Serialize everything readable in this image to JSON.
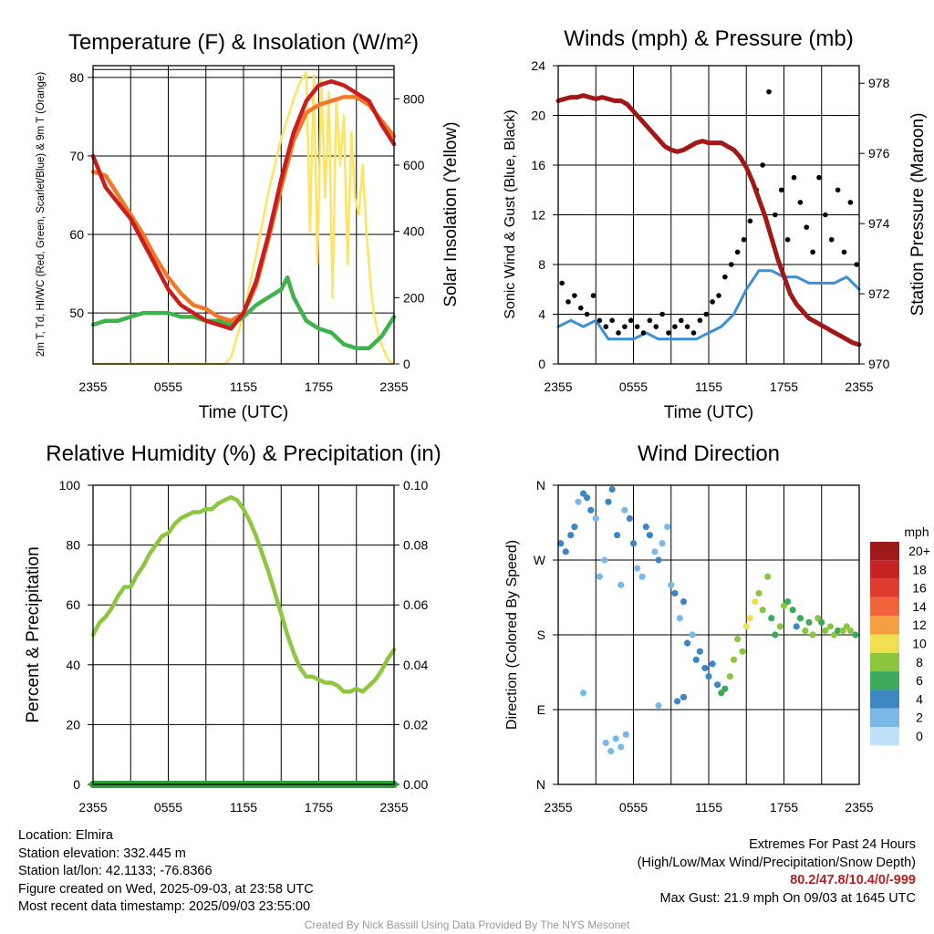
{
  "chart_data": [
    {
      "type": "line",
      "title": "Temperature (F) & Insolation (W/m²)",
      "xlabel": "Time (UTC)",
      "ylabel": "2m T, Td, HI/WC (Red, Green, Scarlet/Blue) & 9m T (Orange)",
      "y2label": "Solar Insolation (Yellow)",
      "x_ticks": [
        "2355",
        "0555",
        "1155",
        "1755",
        "2355"
      ],
      "y_ticks": [
        "50",
        "60",
        "70",
        "80"
      ],
      "y2_ticks": [
        "0",
        "200",
        "400",
        "600",
        "800"
      ],
      "ylim": [
        43.5,
        81.5
      ],
      "y2lim": [
        0,
        900
      ],
      "grid": true,
      "series": [
        {
          "name": "2m T",
          "color": "#c81e1e",
          "axis": "left",
          "x": [
            0,
            1,
            2,
            3,
            4,
            5,
            6,
            7,
            8,
            9,
            10,
            11,
            11.5,
            12,
            13,
            14,
            15,
            16,
            17,
            18,
            19,
            20,
            21,
            22,
            23,
            24
          ],
          "y": [
            70,
            66,
            64,
            62,
            59,
            56,
            53,
            51,
            50,
            49,
            48.5,
            48,
            49,
            50,
            54,
            60,
            67,
            73,
            77,
            79,
            79.5,
            79,
            78,
            77,
            74,
            71.5
          ]
        },
        {
          "name": "9m T",
          "color": "#f07828",
          "axis": "left",
          "x": [
            0,
            1,
            2,
            3,
            4,
            5,
            6,
            7,
            8,
            9,
            10,
            11,
            12,
            13,
            14,
            15,
            16,
            17,
            18,
            19,
            20,
            21,
            22,
            23,
            24
          ],
          "y": [
            68,
            67.5,
            65,
            62.5,
            60,
            57,
            54.5,
            52.5,
            51,
            50.5,
            49.5,
            49,
            50,
            53.5,
            59.5,
            66,
            72,
            75.5,
            76.5,
            77,
            77.5,
            77.5,
            76.5,
            74.5,
            72.5
          ]
        },
        {
          "name": "2m Td",
          "color": "#3cb44b",
          "axis": "left",
          "x": [
            0,
            1,
            2,
            3,
            4,
            5,
            6,
            7,
            8,
            9,
            10,
            11,
            12,
            13,
            14,
            15,
            15.5,
            16,
            17,
            18,
            19,
            20,
            21,
            22,
            23,
            24
          ],
          "y": [
            48.5,
            49,
            49,
            49.5,
            50,
            50,
            50,
            49.5,
            49.5,
            49,
            49,
            48.5,
            49.5,
            51,
            52,
            53,
            54.5,
            52,
            49,
            48,
            47.5,
            46,
            45.5,
            45.5,
            47,
            49.5
          ]
        },
        {
          "name": "Solar Insolation",
          "color": "#ffe461",
          "axis": "right",
          "x": [
            0,
            10.5,
            11,
            12,
            13,
            14,
            15,
            16,
            16.5,
            17,
            17.3,
            17.6,
            17.9,
            18.2,
            18.5,
            18.8,
            19.1,
            19.4,
            19.7,
            20,
            20.3,
            20.6,
            20.9,
            21.2,
            21.5,
            21.8,
            22.1,
            22.4,
            22.8,
            23.2,
            23.6,
            24
          ],
          "y": [
            0,
            0,
            20,
            150,
            330,
            520,
            680,
            800,
            850,
            880,
            400,
            870,
            300,
            860,
            500,
            820,
            200,
            800,
            600,
            750,
            300,
            700,
            500,
            450,
            600,
            400,
            250,
            150,
            80,
            40,
            10,
            0
          ]
        }
      ]
    },
    {
      "type": "line",
      "title": "Winds (mph) & Pressure (mb)",
      "xlabel": "Time (UTC)",
      "ylabel": "Sonic Wind & Gust (Blue, Black)",
      "y2label": "Station Pressure (Maroon)",
      "x_ticks": [
        "2355",
        "0555",
        "1155",
        "1755",
        "2355"
      ],
      "y_ticks": [
        "0",
        "4",
        "8",
        "12",
        "16",
        "20",
        "24"
      ],
      "y2_ticks": [
        "970",
        "972",
        "974",
        "976",
        "978"
      ],
      "ylim": [
        0,
        24
      ],
      "y2lim": [
        970,
        978.5
      ],
      "grid": true,
      "series": [
        {
          "name": "Sonic Wind",
          "color": "#3c8fd2",
          "axis": "left",
          "x": [
            0,
            1,
            2,
            3,
            4,
            5,
            6,
            7,
            8,
            9,
            10,
            11,
            12,
            13,
            14,
            15,
            16,
            17,
            18,
            19,
            20,
            21,
            22,
            23,
            24
          ],
          "y": [
            3,
            3.5,
            3,
            3.5,
            2,
            2,
            2,
            2.5,
            2,
            2,
            2,
            2,
            2.5,
            3,
            4,
            6,
            7.5,
            7.5,
            7,
            7,
            6.5,
            6.5,
            6.5,
            7,
            6
          ]
        },
        {
          "name": "Gust",
          "color": "#000000",
          "axis": "left",
          "x": [
            0.3,
            0.8,
            1.3,
            1.8,
            2.3,
            2.8,
            3.3,
            3.8,
            4.3,
            4.8,
            5.3,
            5.8,
            6.3,
            6.8,
            7.3,
            7.8,
            8.3,
            8.8,
            9.3,
            9.8,
            10.3,
            10.8,
            11.3,
            11.8,
            12.3,
            12.8,
            13.3,
            13.8,
            14.3,
            14.8,
            15.3,
            15.8,
            16.3,
            16.8,
            17.3,
            17.8,
            18.3,
            18.8,
            19.3,
            19.8,
            20.3,
            20.8,
            21.3,
            21.8,
            22.3,
            22.8,
            23.3,
            23.8
          ],
          "y": [
            6.5,
            5,
            5.5,
            4.5,
            4,
            5.5,
            3.5,
            3,
            3.5,
            2.5,
            3,
            3.5,
            3,
            2.5,
            3.5,
            3,
            4,
            2.5,
            3,
            3.5,
            3,
            2.5,
            3.5,
            4,
            5,
            5.5,
            7,
            8,
            9,
            10,
            11.5,
            14,
            16,
            21.9,
            12,
            14,
            10,
            15,
            13,
            11,
            9,
            15,
            12,
            10,
            14,
            9,
            13,
            8
          ]
        },
        {
          "name": "Station Pressure",
          "color": "#a01818",
          "axis": "right",
          "x": [
            0,
            0.5,
            1,
            1.5,
            2,
            2.5,
            3,
            3.5,
            4,
            4.5,
            5,
            5.5,
            6,
            6.5,
            7,
            7.5,
            8,
            8.5,
            9,
            9.5,
            10,
            10.5,
            11,
            11.5,
            12,
            12.5,
            13,
            13.5,
            14,
            14.5,
            15,
            15.5,
            16,
            16.5,
            17,
            17.5,
            18,
            18.5,
            19,
            19.5,
            20,
            20.5,
            21,
            21.5,
            22,
            22.5,
            23,
            23.5,
            24
          ],
          "y": [
            977.5,
            977.55,
            977.6,
            977.6,
            977.65,
            977.6,
            977.55,
            977.6,
            977.55,
            977.5,
            977.5,
            977.4,
            977.2,
            977,
            976.8,
            976.6,
            976.4,
            976.2,
            976.1,
            976.05,
            976.1,
            976.2,
            976.3,
            976.35,
            976.3,
            976.3,
            976.3,
            976.2,
            976.1,
            975.9,
            975.6,
            975.2,
            974.7,
            974.2,
            973.6,
            973.0,
            972.5,
            972.0,
            971.7,
            971.5,
            971.3,
            971.2,
            971.1,
            971.0,
            970.9,
            970.8,
            970.7,
            970.6,
            970.55
          ]
        }
      ]
    },
    {
      "type": "line",
      "title": "Relative Humidity (%) & Precipitation (in)",
      "ylabel": "Percent & Precipitation",
      "x_ticks": [
        "2355",
        "0555",
        "1155",
        "1755",
        "2355"
      ],
      "y_ticks": [
        "0",
        "20",
        "40",
        "60",
        "80",
        "100"
      ],
      "y2_ticks": [
        "0.00",
        "0.02",
        "0.04",
        "0.06",
        "0.08",
        "0.10"
      ],
      "ylim": [
        0,
        100
      ],
      "y2lim": [
        0,
        0.1
      ],
      "grid": true,
      "series": [
        {
          "name": "Relative Humidity",
          "color": "#8dc63f",
          "axis": "left",
          "x": [
            0,
            0.5,
            1,
            1.5,
            2,
            2.5,
            3,
            3.5,
            4,
            4.5,
            5,
            5.5,
            6,
            6.5,
            7,
            7.5,
            8,
            8.5,
            9,
            9.5,
            10,
            10.5,
            11,
            11.5,
            12,
            12.5,
            13,
            13.5,
            14,
            14.5,
            15,
            15.5,
            16,
            16.5,
            17,
            17.5,
            18,
            18.5,
            19,
            19.5,
            20,
            20.5,
            21,
            21.5,
            22,
            22.5,
            23,
            23.5,
            24
          ],
          "y": [
            50,
            54,
            56,
            59,
            63,
            66,
            66,
            70,
            73,
            77,
            80,
            83,
            84,
            87,
            89,
            90,
            91,
            91,
            92,
            92,
            94,
            95,
            96,
            95,
            92,
            88,
            83,
            77,
            71,
            64,
            57,
            50,
            44,
            39,
            36,
            36,
            35,
            34,
            34,
            33,
            31,
            31,
            32,
            31,
            33,
            35,
            38,
            42,
            45
          ]
        },
        {
          "name": "Precipitation",
          "color": "#2e9e3a",
          "axis": "right",
          "x": [
            0,
            24
          ],
          "y": [
            0,
            0
          ]
        }
      ]
    },
    {
      "type": "scatter",
      "title": "Wind Direction",
      "ylabel": "Direction (Colored By Speed)",
      "x_ticks": [
        "2355",
        "0555",
        "1155",
        "1755",
        "2355"
      ],
      "y_ticks": [
        "N",
        "W",
        "S",
        "E",
        "N"
      ],
      "grid": true,
      "legend": {
        "title": "mph",
        "position": "right",
        "labels": [
          "20+",
          "18",
          "16",
          "14",
          "12",
          "10",
          "8",
          "6",
          "4",
          "2",
          "0"
        ],
        "colors": [
          "#9e1a1a",
          "#c82323",
          "#e03c2e",
          "#f0643c",
          "#f5a040",
          "#f0e050",
          "#8cc63e",
          "#3caa5a",
          "#3c87c3",
          "#7ab8e6",
          "#c0e2f8"
        ]
      },
      "direction_note": "y axis in degrees plotted top N=360, W=270, S=180, E=90, bottom N=0",
      "x": [
        0.2,
        0.6,
        1.0,
        1.3,
        1.6,
        2.0,
        2.3,
        2.6,
        3.0,
        3.3,
        3.7,
        4.0,
        4.3,
        4.7,
        5.0,
        5.3,
        5.7,
        6.0,
        6.3,
        6.7,
        7.0,
        7.3,
        7.7,
        8.0,
        8.3,
        8.7,
        9.0,
        9.3,
        9.7,
        10.0,
        10.3,
        10.7,
        11.0,
        11.3,
        11.7,
        12.0,
        12.3,
        12.7,
        13.0,
        13.3,
        13.7,
        14.0,
        14.3,
        14.7,
        15.0,
        15.3,
        15.7,
        16.0,
        16.3,
        16.7,
        17.0,
        17.3,
        17.7,
        18.0,
        18.3,
        18.7,
        19.0,
        19.3,
        19.7,
        20.0,
        20.3,
        20.7,
        21.0,
        21.3,
        21.7,
        22.0,
        22.3,
        22.7,
        23.0,
        23.3,
        23.7,
        3.8,
        4.2,
        4.6,
        5.0,
        5.4,
        2.0,
        8.0,
        9.5,
        10.0
      ],
      "y": [
        290,
        280,
        300,
        310,
        340,
        350,
        345,
        330,
        320,
        250,
        270,
        340,
        355,
        300,
        240,
        330,
        320,
        290,
        260,
        250,
        310,
        300,
        280,
        270,
        290,
        310,
        240,
        230,
        200,
        220,
        170,
        180,
        150,
        160,
        140,
        130,
        145,
        120,
        110,
        115,
        130,
        150,
        175,
        160,
        190,
        200,
        220,
        230,
        210,
        250,
        200,
        180,
        190,
        215,
        220,
        210,
        190,
        200,
        185,
        195,
        180,
        200,
        195,
        185,
        190,
        180,
        185,
        185,
        190,
        185,
        180,
        50,
        40,
        55,
        45,
        60,
        110,
        95,
        100,
        105
      ],
      "speed": [
        4,
        3,
        4,
        4,
        2,
        3,
        4,
        3,
        2,
        1,
        2,
        3,
        4,
        3,
        1,
        2,
        3,
        4,
        2,
        1,
        3,
        4,
        2,
        3,
        2,
        1,
        2,
        3,
        2,
        3,
        4,
        2,
        3,
        4,
        4,
        3,
        4,
        4,
        5,
        6,
        7,
        7,
        8,
        8,
        9,
        10,
        9,
        8,
        8,
        7,
        6,
        6,
        7,
        8,
        6,
        5,
        4,
        6,
        7,
        6,
        8,
        7,
        6,
        7,
        8,
        7,
        6,
        7,
        8,
        7,
        6,
        2,
        2,
        1,
        2,
        1,
        1,
        2,
        4,
        3
      ]
    }
  ],
  "info": {
    "location": "Location: Elmira",
    "elevation": "Station elevation: 332.445 m",
    "latlon": "Station lat/lon: 42.1133; -76.8366",
    "created": "Figure created on Wed, 2025-09-03, at 23:58 UTC",
    "recent": "Most recent data timestamp: 2025/09/03 23:55:00"
  },
  "extremes": {
    "title": "Extremes For Past 24 Hours",
    "subtitle": "(High/Low/Max Wind/Precipitation/Snow Depth)",
    "values": "80.2/47.8/10.4/0/-999",
    "gust": "Max Gust: 21.9 mph On 09/03 at 1645 UTC"
  },
  "credit": "Created By Nick Bassill Using Data Provided By The NYS Mesonet",
  "colors": {
    "precip": "#2e9e3a",
    "rh": "#8dc63f",
    "insolation": "#ffe461",
    "temp": "#c81e1e",
    "temp9m": "#f07828",
    "dewpoint": "#3cb44b",
    "wind": "#3c8fd2",
    "pressure": "#a01818",
    "extreme_values": "#b22222"
  }
}
